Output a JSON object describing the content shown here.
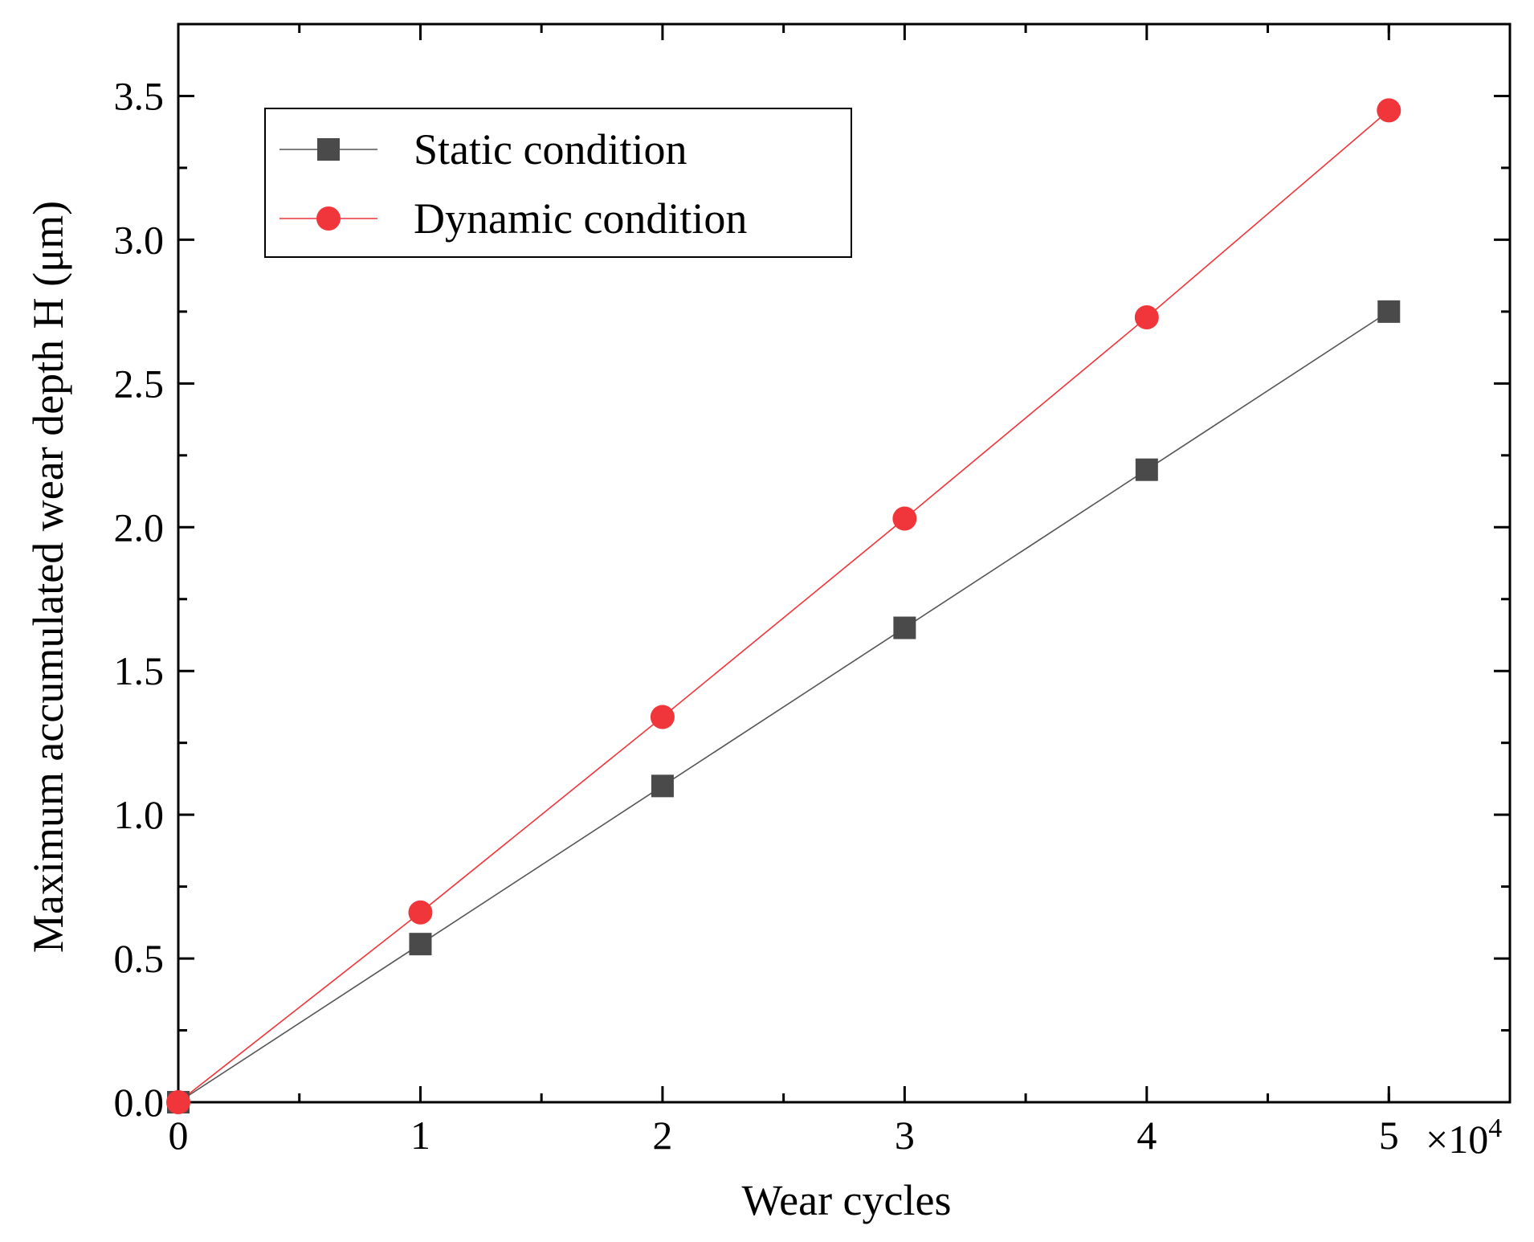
{
  "chart_data": {
    "type": "line",
    "xlabel": "Wear cycles",
    "ylabel": "Maximum accumulated wear depth H (μm)",
    "x_multiplier": "×10",
    "x_multiplier_exp": "4",
    "xlim": [
      0,
      5.5
    ],
    "ylim": [
      0,
      3.75
    ],
    "xticks": [
      0,
      1,
      2,
      3,
      4,
      5
    ],
    "xtick_labels": [
      "0",
      "1",
      "2",
      "3",
      "4",
      "5"
    ],
    "x_minor_ticks": [
      0.5,
      1.5,
      2.5,
      3.5,
      4.5,
      5.0,
      5.5
    ],
    "yticks": [
      0.0,
      0.5,
      1.0,
      1.5,
      2.0,
      2.5,
      3.0,
      3.5
    ],
    "ytick_labels": [
      "0.0",
      "0.5",
      "1.0",
      "1.5",
      "2.0",
      "2.5",
      "3.0",
      "3.5"
    ],
    "y_minor_ticks": [
      0.25,
      0.75,
      1.25,
      1.75,
      2.25,
      2.75,
      3.25,
      3.75
    ],
    "x": [
      0,
      1,
      2,
      3,
      4,
      5
    ],
    "series": [
      {
        "name": "Static condition",
        "marker": "square",
        "color": "#4a4a4a",
        "line_color": "#555555",
        "values": [
          0.0,
          0.55,
          1.1,
          1.65,
          2.2,
          2.75
        ]
      },
      {
        "name": "Dynamic condition",
        "marker": "circle",
        "color": "#f0363a",
        "line_color": "#f0363a",
        "values": [
          0.0,
          0.66,
          1.34,
          2.03,
          2.73,
          3.45
        ]
      }
    ],
    "legend_position": "top-left",
    "grid": false
  }
}
